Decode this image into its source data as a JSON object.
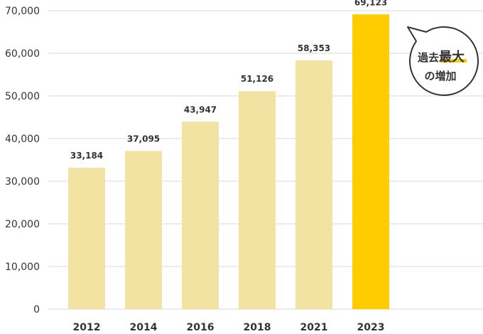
{
  "chart_data": {
    "type": "bar",
    "categories": [
      "2012",
      "2014",
      "2016",
      "2018",
      "2021",
      "2023"
    ],
    "values": [
      33184,
      37095,
      43947,
      51126,
      58353,
      69123
    ],
    "value_labels": [
      "33,184",
      "37,095",
      "43,947",
      "51,126",
      "58,353",
      "69,123"
    ],
    "yticks": [
      "0",
      "10,000",
      "20,000",
      "30,000",
      "40,000",
      "50,000",
      "60,000",
      "70,000"
    ],
    "ylim": [
      0,
      70000
    ],
    "highlight_index": 5,
    "grid": true,
    "title": "",
    "xlabel": "",
    "ylabel": ""
  },
  "annotation": {
    "line1_prefix": "過去",
    "line1_emphasis": "最大",
    "line2": "の増加"
  },
  "colors": {
    "bar": "#F3E3A2",
    "bar_highlight": "#FFCC00",
    "grid": "#D9D9D9",
    "text": "#333333",
    "bubble_border": "#333333",
    "emphasis_underline": "#FFCC00"
  }
}
